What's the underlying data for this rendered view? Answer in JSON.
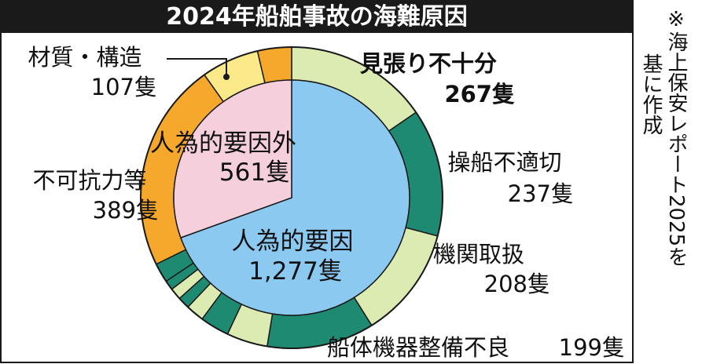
{
  "chart_data": {
    "type": "pie",
    "title": "2024年船舶事故の海難原因",
    "source_note": [
      "※海上保安レポート2025を",
      "基に作成"
    ],
    "inner": [
      {
        "label": "人為的要因",
        "value": 1277,
        "value_text": "1,277隻",
        "color": "#8bc9f1"
      },
      {
        "label": "人為的要因外",
        "value": 561,
        "value_text": "561隻",
        "color": "#f5d0dc"
      }
    ],
    "outer_labels": [
      {
        "label": "見張り不十分",
        "value": 267,
        "value_text": "267隻"
      },
      {
        "label": "操船不適切",
        "value": 237,
        "value_text": "237隻"
      },
      {
        "label": "機関取扱",
        "value": 208,
        "value_text": "208隻"
      },
      {
        "label": "船体機器整備不良",
        "value": 199,
        "value_text": "199隻"
      },
      {
        "label": "不可抗力等",
        "value": 389,
        "value_text": "389隻"
      },
      {
        "label": "材質・構造",
        "value": 107,
        "value_text": "107隻"
      }
    ],
    "outer_ring": [
      {
        "value": 267,
        "color": "#dcebb1"
      },
      {
        "value": 237,
        "color": "#1f8a72"
      },
      {
        "value": 208,
        "color": "#dcebb1"
      },
      {
        "value": 199,
        "color": "#1f8a72"
      },
      {
        "value": 76,
        "color": "#dcebb1"
      },
      {
        "value": 54,
        "color": "#1f8a72"
      },
      {
        "value": 34,
        "color": "#dcebb1"
      },
      {
        "value": 22,
        "color": "#1f8a72"
      },
      {
        "value": 22,
        "color": "#dcebb1"
      },
      {
        "value": 18,
        "color": "#1f8a72"
      },
      {
        "value": 36,
        "color": "#1f8a72"
      },
      {
        "value": 389,
        "color": "#f5a82c"
      },
      {
        "value": 107,
        "color": "#fbe98a"
      },
      {
        "value": 63,
        "color": "#f5a82c"
      }
    ],
    "colors": {
      "title_bg": "#1a1a1a",
      "title_text": "#ffffff",
      "leader": "#1a1a1a"
    }
  }
}
